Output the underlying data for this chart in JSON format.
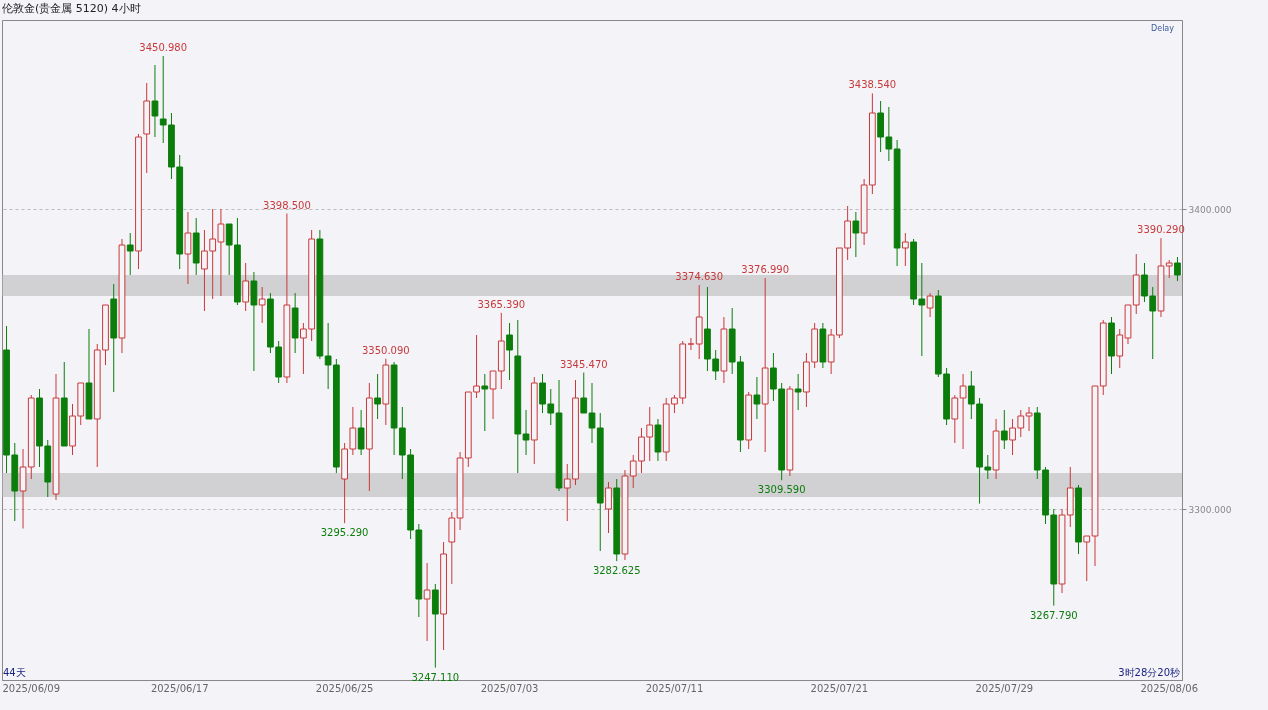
{
  "chart_data": {
    "type": "candlestick",
    "title": "伦敦金(贵金属 5120)  4小时",
    "categories": [
      null,
      null,
      null,
      "2025/06/09",
      null,
      null,
      null,
      null,
      null,
      null,
      null,
      null,
      null,
      null,
      null,
      null,
      null,
      null,
      null,
      null,
      null,
      "2025/06/17",
      null,
      null,
      null,
      null,
      null,
      null,
      null,
      null,
      null,
      null,
      null,
      null,
      null,
      null,
      null,
      null,
      null,
      null,
      null,
      "2025/06/25",
      null,
      null,
      null,
      null,
      null,
      null,
      null,
      null,
      null,
      null,
      null,
      null,
      null,
      null,
      null,
      null,
      null,
      null,
      null,
      "2025/07/03",
      null,
      null,
      null,
      null,
      null,
      null,
      null,
      null,
      null,
      null,
      null,
      null,
      null,
      null,
      null,
      null,
      null,
      null,
      null,
      "2025/07/11",
      null,
      null,
      null,
      null,
      null,
      null,
      null,
      null,
      null,
      null,
      null,
      null,
      null,
      null,
      null,
      null,
      null,
      null,
      null,
      "2025/07/21",
      null,
      null,
      null,
      null,
      null,
      null,
      null,
      null,
      null,
      null,
      null,
      null,
      null,
      null,
      null,
      null,
      null,
      null,
      null,
      "2025/07/29",
      null,
      null,
      null,
      null,
      null,
      null,
      null,
      null,
      null,
      null,
      null,
      null,
      null,
      null,
      null,
      null,
      null,
      null,
      null,
      "2025/08/06",
      null
    ],
    "ohlc": [
      [
        3353,
        3361,
        3312,
        3318
      ],
      [
        3318,
        3322,
        3296,
        3306
      ],
      [
        3306,
        3320,
        3293.5,
        3314
      ],
      [
        3314,
        3338,
        3310,
        3337
      ],
      [
        3337,
        3340,
        3314,
        3321
      ],
      [
        3321,
        3323,
        3304,
        3309
      ],
      [
        3305,
        3345,
        3303,
        3337
      ],
      [
        3337,
        3349,
        3321,
        3321
      ],
      [
        3321,
        3335,
        3318,
        3331
      ],
      [
        3331,
        3342,
        3328,
        3342
      ],
      [
        3342,
        3360,
        3330,
        3330
      ],
      [
        3330,
        3355,
        3314,
        3353
      ],
      [
        3353,
        3368,
        3348,
        3368
      ],
      [
        3370,
        3375,
        3339,
        3357
      ],
      [
        3357,
        3390,
        3352,
        3388
      ],
      [
        3388,
        3392,
        3378,
        3386
      ],
      [
        3386,
        3425,
        3380,
        3424
      ],
      [
        3425,
        3442,
        3412,
        3436
      ],
      [
        3436,
        3448,
        3424,
        3431
      ],
      [
        3430,
        3450.98,
        3422,
        3428
      ],
      [
        3428,
        3432,
        3410,
        3414
      ],
      [
        3414,
        3418,
        3380,
        3385
      ],
      [
        3385,
        3399,
        3375,
        3392
      ],
      [
        3392,
        3397,
        3378,
        3382
      ],
      [
        3380,
        3393,
        3366,
        3386
      ],
      [
        3386,
        3400,
        3370,
        3390
      ],
      [
        3389,
        3400,
        3371,
        3395
      ],
      [
        3395,
        3395,
        3378,
        3388
      ],
      [
        3388,
        3397,
        3368,
        3369
      ],
      [
        3369,
        3382,
        3366,
        3376
      ],
      [
        3376,
        3379,
        3346,
        3368
      ],
      [
        3368,
        3374,
        3362,
        3370
      ],
      [
        3370,
        3372,
        3352,
        3354
      ],
      [
        3354,
        3356,
        3342,
        3344
      ],
      [
        3344,
        3398.5,
        3342,
        3368
      ],
      [
        3367,
        3372,
        3352,
        3357
      ],
      [
        3357,
        3362,
        3345,
        3360
      ],
      [
        3360,
        3393,
        3356,
        3390
      ],
      [
        3390,
        3393,
        3350,
        3351
      ],
      [
        3351,
        3362,
        3340,
        3348
      ],
      [
        3348,
        3350,
        3312,
        3314
      ],
      [
        3310,
        3322,
        3295.29,
        3320
      ],
      [
        3320,
        3334,
        3318,
        3327
      ],
      [
        3327,
        3333,
        3318,
        3320
      ],
      [
        3320,
        3342,
        3306,
        3337
      ],
      [
        3337,
        3345,
        3330,
        3335
      ],
      [
        3335,
        3350.09,
        3328,
        3348
      ],
      [
        3348,
        3349,
        3318,
        3327
      ],
      [
        3327,
        3334,
        3310,
        3318
      ],
      [
        3318,
        3320,
        3290,
        3293
      ],
      [
        3293,
        3295,
        3264,
        3270
      ],
      [
        3270,
        3282,
        3256,
        3273
      ],
      [
        3273,
        3275,
        3247.11,
        3265
      ],
      [
        3265,
        3289,
        3253,
        3285
      ],
      [
        3289,
        3299,
        3275,
        3297
      ],
      [
        3297,
        3319,
        3293,
        3317
      ],
      [
        3317,
        3339,
        3314,
        3339
      ],
      [
        3339,
        3358,
        3337,
        3341
      ],
      [
        3341,
        3345,
        3326,
        3340
      ],
      [
        3340,
        3346,
        3330,
        3346
      ],
      [
        3346,
        3365.39,
        3340,
        3356
      ],
      [
        3358,
        3362,
        3343,
        3353
      ],
      [
        3351,
        3363,
        3312,
        3325
      ],
      [
        3325,
        3333,
        3318,
        3323
      ],
      [
        3323,
        3344,
        3315,
        3342
      ],
      [
        3342,
        3345,
        3332,
        3335
      ],
      [
        3335,
        3340,
        3328,
        3332
      ],
      [
        3332,
        3343,
        3306,
        3307
      ],
      [
        3307,
        3315,
        3296,
        3310
      ],
      [
        3310,
        3343,
        3308,
        3337
      ],
      [
        3337,
        3345.47,
        3332,
        3332
      ],
      [
        3332,
        3342,
        3322,
        3327
      ],
      [
        3327,
        3332,
        3286,
        3302
      ],
      [
        3300,
        3309,
        3292,
        3307
      ],
      [
        3307,
        3310,
        3282.625,
        3285
      ],
      [
        3285,
        3313,
        3283,
        3311
      ],
      [
        3311,
        3318,
        3307,
        3316
      ],
      [
        3316,
        3327,
        3312,
        3324
      ],
      [
        3324,
        3334,
        3316,
        3328
      ],
      [
        3328,
        3330,
        3316,
        3319
      ],
      [
        3319,
        3337,
        3316,
        3335
      ],
      [
        3335,
        3338,
        3332,
        3337
      ],
      [
        3337,
        3356,
        3335,
        3355
      ],
      [
        3355,
        3357,
        3353,
        3355
      ],
      [
        3355,
        3374.63,
        3350,
        3364
      ],
      [
        3360,
        3374,
        3346,
        3350
      ],
      [
        3350,
        3353,
        3343,
        3346
      ],
      [
        3346,
        3364,
        3342,
        3360
      ],
      [
        3360,
        3367,
        3345,
        3349
      ],
      [
        3349,
        3351,
        3319,
        3323
      ],
      [
        3323,
        3339,
        3320,
        3338
      ],
      [
        3338,
        3344,
        3330,
        3335
      ],
      [
        3335,
        3376.99,
        3319,
        3347
      ],
      [
        3347,
        3352,
        3336,
        3340
      ],
      [
        3340,
        3342,
        3309.59,
        3313
      ],
      [
        3313,
        3341,
        3311,
        3340
      ],
      [
        3340,
        3345,
        3333,
        3339
      ],
      [
        3339,
        3352,
        3334,
        3349
      ],
      [
        3349,
        3362,
        3347,
        3360
      ],
      [
        3360,
        3362,
        3347,
        3349
      ],
      [
        3349,
        3360,
        3345,
        3358
      ],
      [
        3358,
        3387,
        3357,
        3387
      ],
      [
        3387,
        3401,
        3383,
        3396
      ],
      [
        3396,
        3399,
        3384,
        3392
      ],
      [
        3392,
        3410,
        3388,
        3408
      ],
      [
        3408,
        3438.54,
        3405,
        3432
      ],
      [
        3432,
        3436,
        3419,
        3424
      ],
      [
        3424,
        3434,
        3416,
        3420
      ],
      [
        3420,
        3423,
        3381,
        3387
      ],
      [
        3387,
        3392,
        3381,
        3389
      ],
      [
        3389,
        3390,
        3368,
        3370
      ],
      [
        3370,
        3382,
        3351,
        3368
      ],
      [
        3367,
        3372,
        3364,
        3371
      ],
      [
        3371,
        3373,
        3344,
        3345
      ],
      [
        3345,
        3347,
        3328,
        3330
      ],
      [
        3330,
        3338,
        3322,
        3337
      ],
      [
        3337,
        3345,
        3320,
        3341
      ],
      [
        3341,
        3346,
        3330,
        3335
      ],
      [
        3335,
        3337,
        3301.8,
        3314
      ],
      [
        3314,
        3318,
        3310,
        3313
      ],
      [
        3313,
        3330,
        3310,
        3326
      ],
      [
        3326,
        3333,
        3320,
        3323
      ],
      [
        3323,
        3330,
        3318,
        3327
      ],
      [
        3327,
        3333,
        3324,
        3331
      ],
      [
        3331,
        3334,
        3326,
        3332
      ],
      [
        3332,
        3334,
        3310,
        3313
      ],
      [
        3313,
        3314,
        3295,
        3298
      ],
      [
        3298,
        3300,
        3267.79,
        3275
      ],
      [
        3275,
        3300,
        3272,
        3298
      ],
      [
        3298,
        3314,
        3294,
        3307
      ],
      [
        3307,
        3308,
        3285,
        3289
      ],
      [
        3289,
        3291,
        3276,
        3291
      ],
      [
        3291,
        3341,
        3281,
        3341
      ],
      [
        3341,
        3363,
        3338,
        3362
      ],
      [
        3362,
        3364,
        3345,
        3351
      ],
      [
        3351,
        3360,
        3347,
        3358
      ],
      [
        3357,
        3368,
        3355,
        3368
      ],
      [
        3368,
        3385,
        3365,
        3378
      ],
      [
        3378,
        3382,
        3369,
        3371
      ],
      [
        3371,
        3374,
        3350,
        3366
      ],
      [
        3366,
        3390.29,
        3364,
        3381
      ],
      [
        3381,
        3383,
        3377,
        3382
      ],
      [
        3382,
        3384,
        3376,
        3378
      ]
    ],
    "ylim": [
      3243,
      3463
    ],
    "yticks": [
      {
        "value": 3300,
        "label": "3300.000"
      },
      {
        "value": 3400,
        "label": "3400.000"
      }
    ],
    "grid": "y",
    "bands": [
      {
        "axis": "y",
        "from": 3371,
        "to": 3378
      },
      {
        "axis": "y",
        "from": 3304,
        "to": 3312
      }
    ],
    "annotations": [
      {
        "text": "3450.980",
        "y": 3450.98
      },
      {
        "text": "3398.500",
        "y": 3398.5
      },
      {
        "text": "3350.090",
        "y": 3350.09
      },
      {
        "text": "3365.390",
        "y": 3365.39
      },
      {
        "text": "3345.470",
        "y": 3345.47
      },
      {
        "text": "3374.630",
        "y": 3374.63
      },
      {
        "text": "3376.990",
        "y": 3376.99
      },
      {
        "text": "3438.540",
        "y": 3438.54
      },
      {
        "text": "3390.290",
        "y": 3390.29
      },
      {
        "text": "3295.290",
        "y": 3295.29
      },
      {
        "text": "3247.110",
        "y": 3247.11
      },
      {
        "text": "3282.625",
        "y": 3282.625
      },
      {
        "text": "3309.590",
        "y": 3309.59
      },
      {
        "text": "3267.790",
        "y": 3267.79
      },
      "44天",
      "3时28分20秒",
      "Delay"
    ]
  }
}
